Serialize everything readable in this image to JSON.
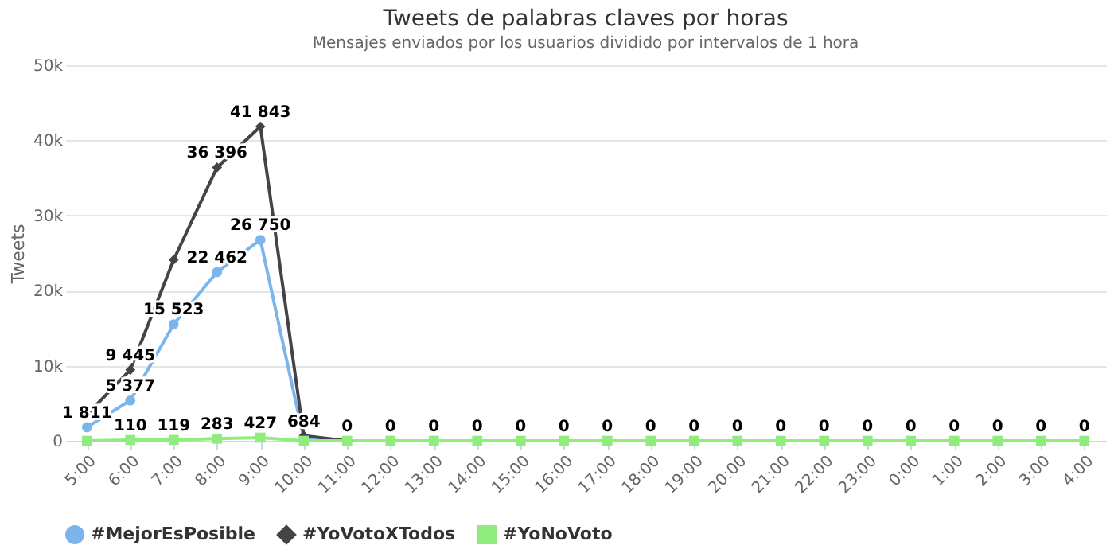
{
  "chart_data": {
    "type": "line",
    "title": "Tweets de palabras claves por horas",
    "subtitle": "Mensajes enviados por los usuarios dividido por intervalos de 1 hora",
    "ylabel": "Tweets",
    "categories": [
      "5:00",
      "6:00",
      "7:00",
      "8:00",
      "9:00",
      "10:00",
      "11:00",
      "12:00",
      "13:00",
      "14:00",
      "15:00",
      "16:00",
      "17:00",
      "18:00",
      "19:00",
      "20:00",
      "21:00",
      "22:00",
      "23:00",
      "0:00",
      "1:00",
      "2:00",
      "3:00",
      "4:00"
    ],
    "ylim": [
      0,
      50000
    ],
    "yticks": [
      0,
      {
        "value": 10000,
        "label": "10k"
      },
      {
        "value": 20000,
        "label": "20k"
      },
      {
        "value": 30000,
        "label": "30k"
      },
      {
        "value": 40000,
        "label": "40k"
      },
      {
        "value": 50000,
        "label": "50k"
      }
    ],
    "grid": "y",
    "legend": "bottom",
    "line_style": "solid",
    "series": [
      {
        "name": "#MejorEsPosible",
        "color": "#7cb5ec",
        "marker": "circle",
        "values": [
          1811,
          5377,
          15523,
          22462,
          26750,
          300,
          0,
          null,
          null,
          null,
          null,
          null,
          null,
          null,
          null,
          null,
          null,
          null,
          null,
          null,
          null,
          null,
          null,
          null
        ],
        "value_labels": [
          "1 811",
          "5 377",
          "15 523",
          "22 462",
          "26 750",
          null,
          null,
          null,
          null,
          null,
          null,
          null,
          null,
          null,
          null,
          null,
          null,
          null,
          null,
          null,
          null,
          null,
          null,
          null
        ]
      },
      {
        "name": "#YoVotoXTodos",
        "color": "#434348",
        "marker": "diamond",
        "values": [
          3500,
          9445,
          24100,
          36396,
          41843,
          684,
          0,
          null,
          null,
          null,
          null,
          null,
          null,
          null,
          null,
          null,
          null,
          null,
          null,
          null,
          null,
          null,
          null,
          null
        ],
        "value_labels": [
          null,
          "9 445",
          null,
          "36 396",
          "41 843",
          "684",
          null,
          null,
          null,
          null,
          null,
          null,
          null,
          null,
          null,
          null,
          null,
          null,
          null,
          null,
          null,
          null,
          null,
          null
        ]
      },
      {
        "name": "#YoNoVoto",
        "color": "#90ed7d",
        "marker": "square",
        "values": [
          0,
          110,
          119,
          283,
          427,
          0,
          0,
          0,
          0,
          0,
          0,
          0,
          0,
          0,
          0,
          0,
          0,
          0,
          0,
          0,
          0,
          0,
          0,
          0
        ],
        "value_labels": [
          null,
          "110",
          "119",
          "283",
          "427",
          null,
          "0",
          "0",
          "0",
          "0",
          "0",
          "0",
          "0",
          "0",
          "0",
          "0",
          "0",
          "0",
          "0",
          "0",
          "0",
          "0",
          "0",
          "0"
        ]
      }
    ]
  }
}
